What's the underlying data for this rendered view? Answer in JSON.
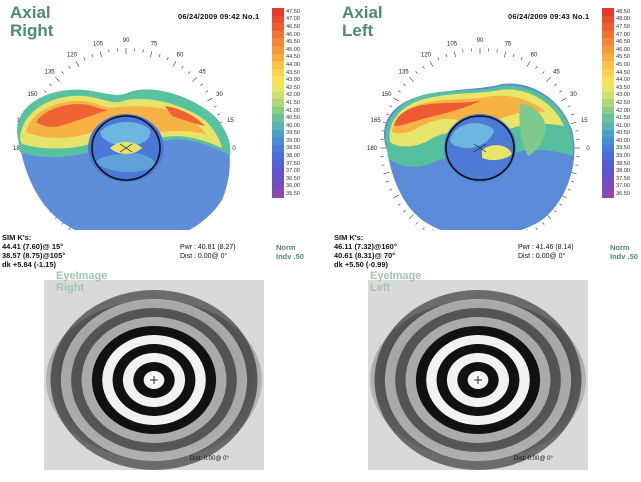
{
  "scale_values": [
    "47.50",
    "47.00",
    "46.50",
    "46.00",
    "45.50",
    "45.00",
    "44.50",
    "44.00",
    "43.50",
    "43.00",
    "42.50",
    "42.00",
    "41.50",
    "41.00",
    "40.50",
    "40.00",
    "39.50",
    "39.00",
    "38.50",
    "38.00",
    "37.50",
    "37.00",
    "36.50",
    "36.00",
    "35.50"
  ],
  "scale_values_left": [
    "48.50",
    "48.00",
    "47.50",
    "47.00",
    "46.50",
    "46.00",
    "45.50",
    "45.00",
    "44.50",
    "44.00",
    "43.50",
    "43.00",
    "42.50",
    "42.00",
    "41.50",
    "41.00",
    "40.50",
    "40.00",
    "39.50",
    "39.00",
    "38.50",
    "38.00",
    "37.50",
    "37.00",
    "36.50"
  ],
  "scale_colors": [
    "#e53b2c",
    "#ea4a30",
    "#ef5e33",
    "#f27236",
    "#f5863a",
    "#f79a3d",
    "#f9ad41",
    "#fbc245",
    "#fcd34a",
    "#f8e05a",
    "#e9e666",
    "#cfe06c",
    "#aed77a",
    "#8bcd86",
    "#6cc19a",
    "#58b3b2",
    "#4da0c4",
    "#4a8dd2",
    "#4a7cd9",
    "#4c6cdc",
    "#525fd9",
    "#5d55d2",
    "#6a4fc6",
    "#7a4bba",
    "#8d4aad"
  ],
  "right": {
    "title_line1": "Axial",
    "title_line2": "Right",
    "date": "06/24/2009 09:42 No.1",
    "simk_label": "SIM K's:",
    "k1": "44.41 (7.60)@ 15°",
    "k2": "38.57 (8.75)@105°",
    "dk": "dk +5.84 (-1.15)",
    "pwr": "Pwr : 40.81 (8.27)",
    "dist": "Dist : 0.00@ 0°",
    "norm_line1": "Norm",
    "norm_line2": "Indv .50",
    "eye_label_line1": "EyeImage",
    "eye_label_line2": "Right",
    "eye_dist": "Dist: 0.00@ 0°"
  },
  "left": {
    "title_line1": "Axial",
    "title_line2": "Left",
    "date": "06/24/2009 09:43 No.1",
    "simk_label": "SIM K's:",
    "k1": "46.11 (7.32)@160°",
    "k2": "40.61 (8.31)@ 70°",
    "dk": "dk +5.50 (-0.99)",
    "pwr": "Pwr : 41.46 (8.14)",
    "dist": "Dist : 0.00@ 0°",
    "norm_line1": "Norm",
    "norm_line2": "Indv .50",
    "eye_label_line1": "EyeImage",
    "eye_label_line2": "Left",
    "eye_dist": "Dist: 0.00@ 0°"
  },
  "angle_labels": [
    "0",
    "15",
    "30",
    "45",
    "60",
    "75",
    "90",
    "105",
    "120",
    "135",
    "150",
    "165",
    "180"
  ]
}
